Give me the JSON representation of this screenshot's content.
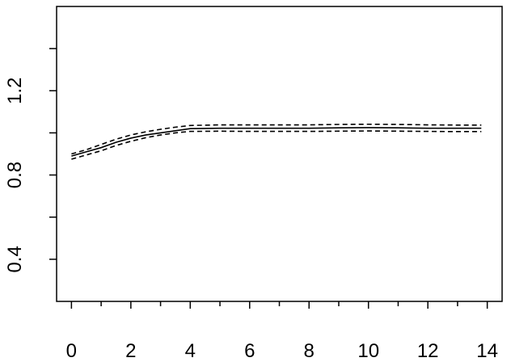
{
  "chart_data": {
    "type": "line",
    "title": "",
    "xlabel": "",
    "ylabel": "",
    "xlim": [
      -0.5,
      14.5
    ],
    "ylim": [
      0.2,
      1.6
    ],
    "x_ticks": [
      0,
      2,
      4,
      6,
      8,
      10,
      12,
      14
    ],
    "x_tick_labels": [
      "0",
      "2",
      "4",
      "6",
      "8",
      "10",
      "12",
      "14"
    ],
    "x_minor_ticks": [
      1,
      3,
      5,
      7,
      9,
      11,
      13
    ],
    "y_ticks": [
      0.4,
      0.6,
      0.8,
      1.0,
      1.2,
      1.4
    ],
    "y_tick_labels": [
      "0.4",
      "",
      "0.8",
      "",
      "1.2",
      ""
    ],
    "grid": false,
    "legend": "none",
    "x": [
      0,
      0.5,
      1,
      1.5,
      2,
      2.5,
      3,
      3.5,
      4,
      5,
      6,
      7,
      8,
      9,
      10,
      11,
      12,
      13,
      13.8
    ],
    "series": [
      {
        "style": "solid",
        "values": [
          0.89,
          0.91,
          0.93,
          0.955,
          0.975,
          0.99,
          1.0,
          1.01,
          1.02,
          1.022,
          1.022,
          1.022,
          1.022,
          1.024,
          1.025,
          1.024,
          1.022,
          1.022,
          1.022
        ]
      },
      {
        "style": "dashed",
        "values": [
          0.9,
          0.92,
          0.945,
          0.97,
          0.99,
          1.005,
          1.017,
          1.027,
          1.035,
          1.038,
          1.038,
          1.038,
          1.038,
          1.04,
          1.041,
          1.04,
          1.038,
          1.037,
          1.037
        ]
      },
      {
        "style": "dashed",
        "values": [
          0.875,
          0.895,
          0.915,
          0.94,
          0.96,
          0.977,
          0.99,
          1.0,
          1.007,
          1.008,
          1.007,
          1.007,
          1.007,
          1.008,
          1.009,
          1.008,
          1.007,
          1.006,
          1.006
        ]
      }
    ]
  }
}
